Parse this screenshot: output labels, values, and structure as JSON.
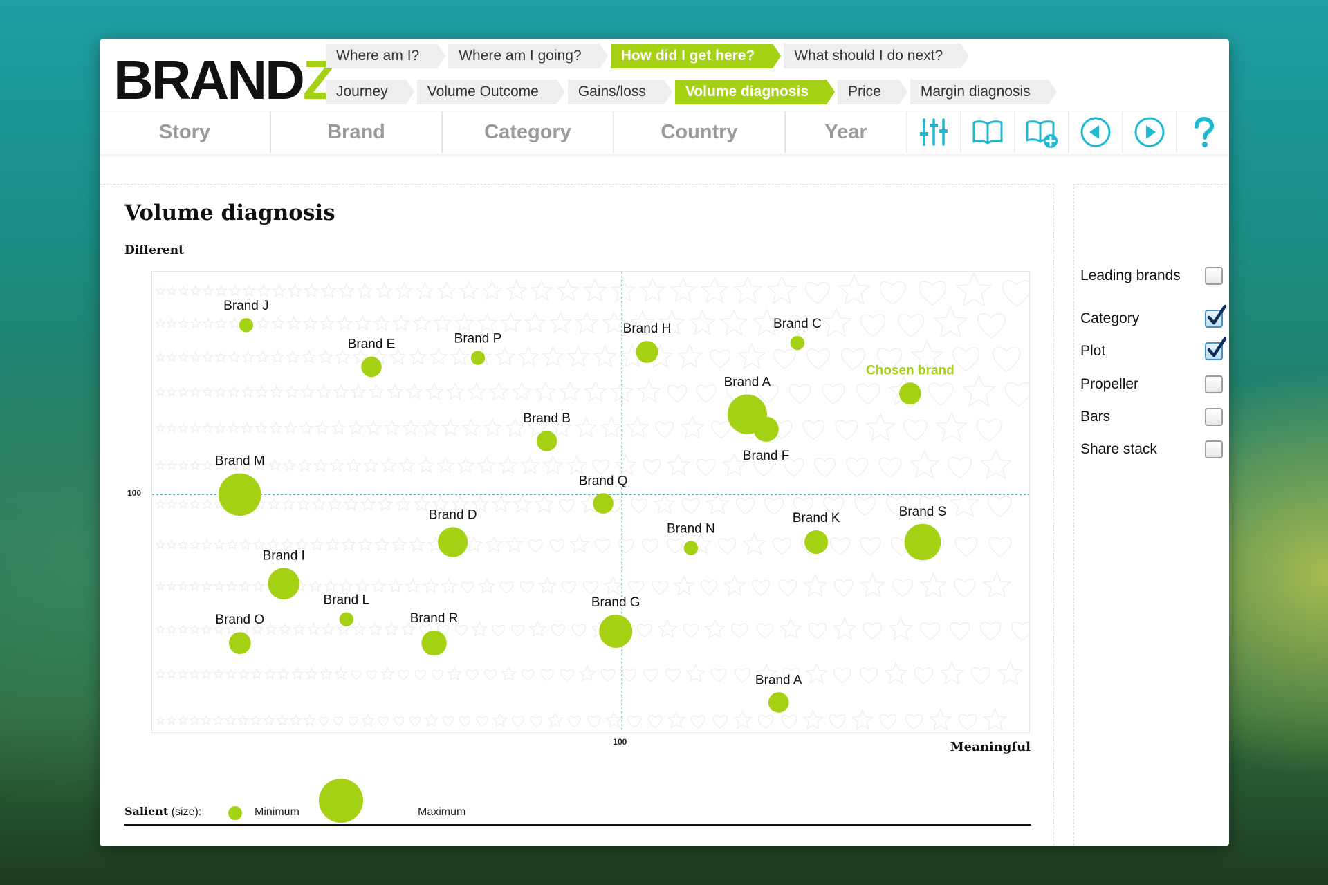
{
  "header": {
    "logo": {
      "text": "BRAND",
      "accent": "Z"
    },
    "breadcrumb_primary": [
      {
        "label": "Where am I?",
        "active": false
      },
      {
        "label": "Where am I going?",
        "active": false
      },
      {
        "label": "How did I get here?",
        "active": true
      },
      {
        "label": "What should I do next?",
        "active": false
      }
    ],
    "breadcrumb_secondary": [
      {
        "label": "Journey",
        "active": false
      },
      {
        "label": "Volume Outcome",
        "active": false
      },
      {
        "label": "Gains/loss",
        "active": false
      },
      {
        "label": "Volume diagnosis",
        "active": true
      },
      {
        "label": "Price",
        "active": false
      },
      {
        "label": "Margin diagnosis",
        "active": false
      }
    ]
  },
  "nav": {
    "tabs": [
      "Story",
      "Brand",
      "Category",
      "Country",
      "Year"
    ],
    "tools": [
      "sliders-icon",
      "book-icon",
      "book-add-icon",
      "previous-icon",
      "next-icon",
      "help-icon"
    ]
  },
  "main": {
    "title": "Volume diagnosis"
  },
  "colors": {
    "accent": "#a4d113",
    "reference_line": "#35b6c8",
    "icon": "#1fb8d1",
    "chosen_label": "#a4d113"
  },
  "chart_data": {
    "type": "scatter",
    "ylabel": "Different",
    "xlabel": "Meaningful",
    "x_reference": {
      "value": 100,
      "label": "100"
    },
    "y_reference": {
      "value": 100,
      "label": "100"
    },
    "points": [
      {
        "name": "Brand J",
        "x": 40,
        "y": 157,
        "size": 0.05
      },
      {
        "name": "Brand E",
        "x": 60,
        "y": 143,
        "size": 0.25
      },
      {
        "name": "Brand P",
        "x": 77,
        "y": 146,
        "size": 0.05
      },
      {
        "name": "Brand B",
        "x": 88,
        "y": 118,
        "size": 0.25
      },
      {
        "name": "Brand M",
        "x": 39,
        "y": 100,
        "size": 0.95
      },
      {
        "name": "Brand Q",
        "x": 97,
        "y": 97,
        "size": 0.25
      },
      {
        "name": "Brand H",
        "x": 104,
        "y": 148,
        "size": 0.3
      },
      {
        "name": "Brand C",
        "x": 128,
        "y": 151,
        "size": 0.05
      },
      {
        "name": "Brand A",
        "x": 120,
        "y": 127,
        "size": 0.85
      },
      {
        "name": "Brand F",
        "x": 123,
        "y": 122,
        "size": 0.4
      },
      {
        "name": "Chosen brand",
        "x": 146,
        "y": 134,
        "size": 0.3,
        "chosen": true
      },
      {
        "name": "Brand D",
        "x": 73,
        "y": 84,
        "size": 0.55
      },
      {
        "name": "Brand N",
        "x": 111,
        "y": 82,
        "size": 0.05
      },
      {
        "name": "Brand K",
        "x": 131,
        "y": 84,
        "size": 0.35
      },
      {
        "name": "Brand S",
        "x": 148,
        "y": 84,
        "size": 0.75
      },
      {
        "name": "Brand I",
        "x": 46,
        "y": 70,
        "size": 0.6
      },
      {
        "name": "Brand L",
        "x": 56,
        "y": 58,
        "size": 0.05
      },
      {
        "name": "Brand O",
        "x": 39,
        "y": 50,
        "size": 0.3
      },
      {
        "name": "Brand R",
        "x": 70,
        "y": 50,
        "size": 0.4
      },
      {
        "name": "Brand G",
        "x": 99,
        "y": 54,
        "size": 0.65
      },
      {
        "name": "Brand A",
        "x": 125,
        "y": 30,
        "size": 0.25
      }
    ],
    "legend": {
      "title": "Salient",
      "suffix": " (size):",
      "min": "Minimum",
      "max": "Maximum"
    }
  },
  "options": [
    {
      "label": "Leading brands",
      "checked": false
    },
    {
      "label": "Category",
      "checked": true
    },
    {
      "label": "Plot",
      "checked": true
    },
    {
      "label": "Propeller",
      "checked": false
    },
    {
      "label": "Bars",
      "checked": false
    },
    {
      "label": "Share stack",
      "checked": false
    }
  ]
}
